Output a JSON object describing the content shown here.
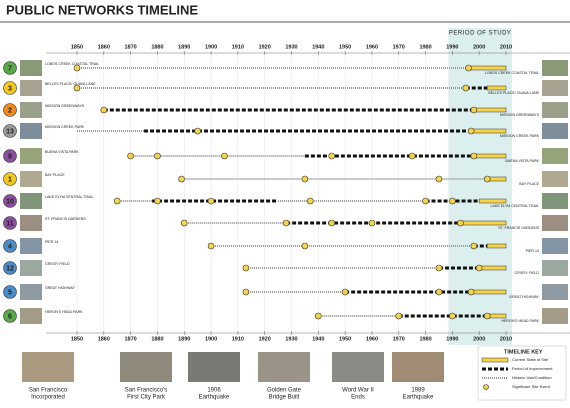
{
  "header": {
    "title": "PUBLIC NETWORKS TIMELINE"
  },
  "timeline": {
    "period_label": "PERIOD OF STUDY",
    "period": [
      1990,
      2010
    ],
    "xlim": [
      1850,
      2010
    ],
    "xticks": [
      1850,
      1860,
      1870,
      1880,
      1890,
      1900,
      1910,
      1920,
      1930,
      1940,
      1950,
      1960,
      1970,
      1980,
      1990,
      2000,
      2010
    ],
    "rows": [
      {
        "number": 7,
        "color": "#5aa84a",
        "name": "LOBOS CREEK COASTAL TRAIL",
        "segments": [
          {
            "kind": "dotted",
            "from": 1850,
            "to": 1996
          },
          {
            "kind": "current",
            "from": 1996,
            "to": 2010
          }
        ],
        "events": [
          1850,
          1996
        ]
      },
      {
        "number": 3,
        "color": "#f2c81e",
        "name": "BELLES PLACE/ GUAVA LANE",
        "segments": [
          {
            "kind": "dotted",
            "from": 1850,
            "to": 1995
          },
          {
            "kind": "dashed",
            "from": 1995,
            "to": 2003
          },
          {
            "kind": "current",
            "from": 2003,
            "to": 2010
          }
        ],
        "events": [
          1850,
          1995
        ]
      },
      {
        "number": 2,
        "color": "#f08a1c",
        "name": "MISSION GREENWAYS",
        "segments": [
          {
            "kind": "dashed",
            "from": 1860,
            "to": 1998
          },
          {
            "kind": "current",
            "from": 1998,
            "to": 2010
          }
        ],
        "events": [
          1860,
          1998
        ]
      },
      {
        "number": 13,
        "color": "#9a9a9a",
        "name": "MISSION CREEK PARK",
        "segments": [
          {
            "kind": "dotted",
            "from": 1850,
            "to": 1875
          },
          {
            "kind": "dashed",
            "from": 1875,
            "to": 1997
          },
          {
            "kind": "current",
            "from": 1997,
            "to": 2010
          }
        ],
        "events": [
          1895,
          1997
        ]
      },
      {
        "number": 9,
        "color": "#8a4f9e",
        "name": "BUENA VISTA PARK",
        "segments": [
          {
            "kind": "dotted",
            "from": 1870,
            "to": 1935
          },
          {
            "kind": "dashed",
            "from": 1935,
            "to": 1998
          },
          {
            "kind": "current",
            "from": 1998,
            "to": 2010
          }
        ],
        "events": [
          1870,
          1880,
          1905,
          1945,
          1975,
          1998
        ]
      },
      {
        "number": 1,
        "color": "#f2c81e",
        "name": "BAY PLACE",
        "segments": [
          {
            "kind": "dotted",
            "from": 1889,
            "to": 2003
          },
          {
            "kind": "current",
            "from": 2003,
            "to": 2010
          }
        ],
        "events": [
          1889,
          1935,
          1985,
          2003
        ]
      },
      {
        "number": 10,
        "color": "#8a4f9e",
        "name": "LAKE ELYM CENTRAL TRAIL",
        "segments": [
          {
            "kind": "dotted",
            "from": 1865,
            "to": 1878
          },
          {
            "kind": "dashed",
            "from": 1878,
            "to": 1925
          },
          {
            "kind": "dotted",
            "from": 1925,
            "to": 1980
          },
          {
            "kind": "dashed",
            "from": 1980,
            "to": 2000
          },
          {
            "kind": "current",
            "from": 2000,
            "to": 2010
          }
        ],
        "events": [
          1865,
          1880,
          1900,
          1937,
          1980,
          1990
        ]
      },
      {
        "number": 11,
        "color": "#8a4f9e",
        "name": "ST. FRANCIS GARDENS",
        "segments": [
          {
            "kind": "dotted",
            "from": 1890,
            "to": 1928
          },
          {
            "kind": "dashed",
            "from": 1928,
            "to": 1993
          },
          {
            "kind": "current",
            "from": 1993,
            "to": 2010
          }
        ],
        "events": [
          1890,
          1928,
          1945,
          1960,
          1993
        ]
      },
      {
        "number": 4,
        "color": "#4a8cc8",
        "name": "PIER 14",
        "segments": [
          {
            "kind": "dotted",
            "from": 1900,
            "to": 1998
          },
          {
            "kind": "dashed",
            "from": 1998,
            "to": 2003
          },
          {
            "kind": "current",
            "from": 2003,
            "to": 2010
          }
        ],
        "events": [
          1900,
          1935,
          1998
        ]
      },
      {
        "number": 12,
        "color": "#4a8cc8",
        "name": "CRISSY FIELD",
        "segments": [
          {
            "kind": "dotted",
            "from": 1913,
            "to": 1985
          },
          {
            "kind": "dashed",
            "from": 1985,
            "to": 2000
          },
          {
            "kind": "current",
            "from": 2000,
            "to": 2010
          }
        ],
        "events": [
          1913,
          1985,
          2000
        ]
      },
      {
        "number": 5,
        "color": "#4a8cc8",
        "name": "GREAT HIGHWAY",
        "segments": [
          {
            "kind": "dotted",
            "from": 1913,
            "to": 1950
          },
          {
            "kind": "dashed",
            "from": 1950,
            "to": 1997
          },
          {
            "kind": "current",
            "from": 1997,
            "to": 2010
          }
        ],
        "events": [
          1913,
          1950,
          1985,
          1997
        ]
      },
      {
        "number": 6,
        "color": "#5aa84a",
        "name": "HERON'S HEAD PARK",
        "segments": [
          {
            "kind": "dotted",
            "from": 1940,
            "to": 1970
          },
          {
            "kind": "dashed",
            "from": 1970,
            "to": 2003
          },
          {
            "kind": "current",
            "from": 2003,
            "to": 2010
          }
        ],
        "events": [
          1940,
          1970,
          1990,
          2003
        ]
      }
    ]
  },
  "milestones": [
    {
      "caption": [
        "San Francisco",
        "Incorporated"
      ]
    },
    {
      "caption": [
        "San Francisco's",
        "First City Park"
      ]
    },
    {
      "caption": [
        "1906",
        "Earthquake"
      ]
    },
    {
      "caption": [
        "Golden Gate",
        "Bridge Built"
      ]
    },
    {
      "caption": [
        "Word War II",
        "Ends"
      ]
    },
    {
      "caption": [
        "1989",
        "Earthquake"
      ]
    }
  ],
  "key": {
    "title": "TIMELINE KEY",
    "items": [
      {
        "kind": "current",
        "label": "Current State of Site"
      },
      {
        "kind": "dashed",
        "label": "Period of Improvement"
      },
      {
        "kind": "dotted",
        "label": "Historic Use/Condition"
      },
      {
        "kind": "event",
        "label": "Significant Site Event"
      }
    ]
  }
}
